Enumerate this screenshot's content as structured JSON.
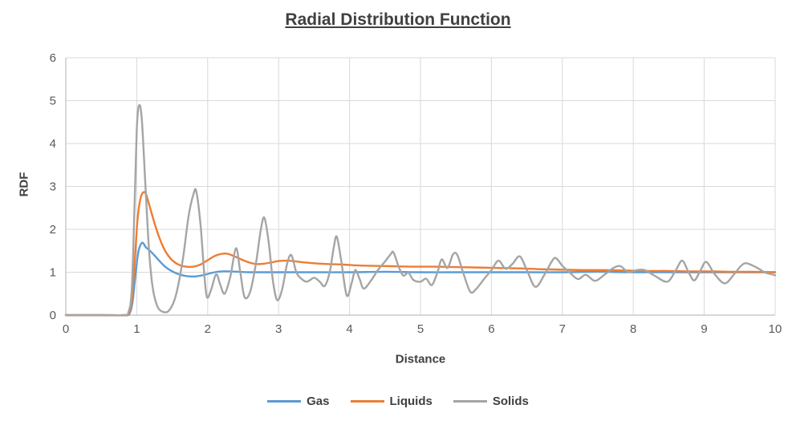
{
  "chart_data": {
    "type": "line",
    "title": "Radial Distribution Function",
    "xlabel": "Distance",
    "ylabel": "RDF",
    "xlim": [
      0,
      10
    ],
    "ylim": [
      0,
      6
    ],
    "x_ticks": [
      "0",
      "1",
      "2",
      "3",
      "4",
      "5",
      "6",
      "7",
      "8",
      "9",
      "10"
    ],
    "y_ticks": [
      "0",
      "1",
      "2",
      "3",
      "4",
      "5",
      "6"
    ],
    "grid": true,
    "legend_position": "bottom",
    "series": [
      {
        "name": "Gas",
        "color": "#5B9BD5",
        "points": [
          [
            0,
            0
          ],
          [
            0.5,
            0
          ],
          [
            0.84,
            0
          ],
          [
            0.9,
            0.04
          ],
          [
            0.94,
            0.3
          ],
          [
            0.98,
            0.9
          ],
          [
            1.02,
            1.45
          ],
          [
            1.06,
            1.66
          ],
          [
            1.09,
            1.68
          ],
          [
            1.13,
            1.58
          ],
          [
            1.2,
            1.48
          ],
          [
            1.3,
            1.3
          ],
          [
            1.4,
            1.13
          ],
          [
            1.5,
            1.02
          ],
          [
            1.6,
            0.95
          ],
          [
            1.7,
            0.91
          ],
          [
            1.8,
            0.9
          ],
          [
            1.9,
            0.92
          ],
          [
            2.0,
            0.96
          ],
          [
            2.1,
            1.0
          ],
          [
            2.2,
            1.02
          ],
          [
            2.3,
            1.02
          ],
          [
            2.45,
            1.01
          ],
          [
            2.6,
            1.0
          ],
          [
            3.0,
            1.0
          ],
          [
            3.5,
            1.0
          ],
          [
            4.0,
            1.0
          ],
          [
            4.5,
            1.01
          ],
          [
            5.0,
            1.0
          ],
          [
            5.5,
            1.0
          ],
          [
            6.0,
            1.0
          ],
          [
            6.5,
            1.0
          ],
          [
            7.0,
            1.0
          ],
          [
            7.5,
            1.01
          ],
          [
            8.0,
            1.0
          ],
          [
            8.5,
            1.0
          ],
          [
            9.0,
            1.0
          ],
          [
            9.5,
            1.0
          ],
          [
            10,
            1.0
          ]
        ]
      },
      {
        "name": "Liquids",
        "color": "#ED7D31",
        "points": [
          [
            0,
            0
          ],
          [
            0.5,
            0
          ],
          [
            0.84,
            0
          ],
          [
            0.89,
            0.05
          ],
          [
            0.93,
            0.35
          ],
          [
            0.97,
            1.2
          ],
          [
            1.01,
            2.2
          ],
          [
            1.05,
            2.7
          ],
          [
            1.09,
            2.86
          ],
          [
            1.13,
            2.82
          ],
          [
            1.18,
            2.55
          ],
          [
            1.25,
            2.15
          ],
          [
            1.32,
            1.8
          ],
          [
            1.4,
            1.5
          ],
          [
            1.5,
            1.28
          ],
          [
            1.6,
            1.17
          ],
          [
            1.7,
            1.13
          ],
          [
            1.8,
            1.13
          ],
          [
            1.9,
            1.18
          ],
          [
            2.0,
            1.28
          ],
          [
            2.1,
            1.38
          ],
          [
            2.2,
            1.43
          ],
          [
            2.28,
            1.43
          ],
          [
            2.38,
            1.37
          ],
          [
            2.5,
            1.28
          ],
          [
            2.6,
            1.22
          ],
          [
            2.7,
            1.19
          ],
          [
            2.8,
            1.2
          ],
          [
            2.9,
            1.23
          ],
          [
            3.0,
            1.26
          ],
          [
            3.1,
            1.27
          ],
          [
            3.2,
            1.26
          ],
          [
            3.35,
            1.23
          ],
          [
            3.5,
            1.21
          ],
          [
            3.7,
            1.19
          ],
          [
            3.9,
            1.18
          ],
          [
            4.1,
            1.16
          ],
          [
            4.3,
            1.15
          ],
          [
            4.6,
            1.14
          ],
          [
            4.9,
            1.13
          ],
          [
            5.2,
            1.13
          ],
          [
            5.5,
            1.12
          ],
          [
            5.8,
            1.11
          ],
          [
            6.1,
            1.1
          ],
          [
            6.4,
            1.09
          ],
          [
            6.7,
            1.07
          ],
          [
            7.0,
            1.06
          ],
          [
            7.3,
            1.05
          ],
          [
            7.6,
            1.05
          ],
          [
            7.9,
            1.04
          ],
          [
            8.2,
            1.03
          ],
          [
            8.5,
            1.03
          ],
          [
            8.8,
            1.02
          ],
          [
            9.1,
            1.02
          ],
          [
            9.4,
            1.01
          ],
          [
            9.7,
            1.01
          ],
          [
            10,
            1.0
          ]
        ]
      },
      {
        "name": "Solids",
        "color": "#A5A5A5",
        "points": [
          [
            0,
            0
          ],
          [
            0.5,
            0
          ],
          [
            0.82,
            0
          ],
          [
            0.88,
            0.05
          ],
          [
            0.93,
            0.6
          ],
          [
            0.97,
            2.6
          ],
          [
            1.0,
            4.3
          ],
          [
            1.03,
            4.88
          ],
          [
            1.07,
            4.6
          ],
          [
            1.12,
            3.1
          ],
          [
            1.17,
            1.6
          ],
          [
            1.22,
            0.7
          ],
          [
            1.28,
            0.25
          ],
          [
            1.35,
            0.09
          ],
          [
            1.45,
            0.1
          ],
          [
            1.55,
            0.45
          ],
          [
            1.65,
            1.3
          ],
          [
            1.73,
            2.3
          ],
          [
            1.8,
            2.82
          ],
          [
            1.84,
            2.88
          ],
          [
            1.9,
            2.1
          ],
          [
            1.95,
            1.0
          ],
          [
            1.99,
            0.42
          ],
          [
            2.05,
            0.6
          ],
          [
            2.12,
            0.95
          ],
          [
            2.18,
            0.7
          ],
          [
            2.24,
            0.5
          ],
          [
            2.32,
            0.9
          ],
          [
            2.4,
            1.56
          ],
          [
            2.46,
            1.0
          ],
          [
            2.52,
            0.42
          ],
          [
            2.6,
            0.55
          ],
          [
            2.68,
            1.2
          ],
          [
            2.75,
            2.0
          ],
          [
            2.8,
            2.27
          ],
          [
            2.86,
            1.7
          ],
          [
            2.92,
            0.8
          ],
          [
            2.98,
            0.35
          ],
          [
            3.05,
            0.6
          ],
          [
            3.12,
            1.2
          ],
          [
            3.18,
            1.4
          ],
          [
            3.25,
            1.0
          ],
          [
            3.32,
            0.85
          ],
          [
            3.4,
            0.78
          ],
          [
            3.5,
            0.87
          ],
          [
            3.58,
            0.78
          ],
          [
            3.65,
            0.68
          ],
          [
            3.72,
            1.0
          ],
          [
            3.78,
            1.6
          ],
          [
            3.82,
            1.83
          ],
          [
            3.88,
            1.3
          ],
          [
            3.96,
            0.46
          ],
          [
            4.03,
            0.75
          ],
          [
            4.08,
            1.05
          ],
          [
            4.14,
            0.85
          ],
          [
            4.2,
            0.62
          ],
          [
            4.3,
            0.8
          ],
          [
            4.4,
            1.05
          ],
          [
            4.5,
            1.25
          ],
          [
            4.58,
            1.42
          ],
          [
            4.62,
            1.46
          ],
          [
            4.7,
            1.1
          ],
          [
            4.76,
            0.92
          ],
          [
            4.83,
            0.99
          ],
          [
            4.9,
            0.82
          ],
          [
            5.0,
            0.78
          ],
          [
            5.08,
            0.85
          ],
          [
            5.16,
            0.7
          ],
          [
            5.24,
            1.0
          ],
          [
            5.3,
            1.3
          ],
          [
            5.38,
            1.1
          ],
          [
            5.46,
            1.42
          ],
          [
            5.52,
            1.4
          ],
          [
            5.6,
            1.0
          ],
          [
            5.7,
            0.55
          ],
          [
            5.78,
            0.6
          ],
          [
            5.9,
            0.85
          ],
          [
            6.0,
            1.05
          ],
          [
            6.1,
            1.27
          ],
          [
            6.2,
            1.08
          ],
          [
            6.3,
            1.2
          ],
          [
            6.4,
            1.37
          ],
          [
            6.5,
            1.05
          ],
          [
            6.62,
            0.66
          ],
          [
            6.75,
            0.95
          ],
          [
            6.85,
            1.25
          ],
          [
            6.91,
            1.33
          ],
          [
            7.0,
            1.15
          ],
          [
            7.1,
            1.0
          ],
          [
            7.22,
            0.84
          ],
          [
            7.33,
            0.94
          ],
          [
            7.46,
            0.8
          ],
          [
            7.6,
            0.95
          ],
          [
            7.72,
            1.1
          ],
          [
            7.82,
            1.14
          ],
          [
            7.93,
            1.0
          ],
          [
            8.05,
            1.05
          ],
          [
            8.16,
            1.05
          ],
          [
            8.3,
            0.92
          ],
          [
            8.48,
            0.78
          ],
          [
            8.6,
            1.05
          ],
          [
            8.69,
            1.27
          ],
          [
            8.78,
            1.0
          ],
          [
            8.86,
            0.81
          ],
          [
            8.95,
            1.05
          ],
          [
            9.03,
            1.24
          ],
          [
            9.15,
            0.95
          ],
          [
            9.29,
            0.74
          ],
          [
            9.42,
            0.95
          ],
          [
            9.52,
            1.15
          ],
          [
            9.6,
            1.21
          ],
          [
            9.75,
            1.1
          ],
          [
            9.85,
            1.0
          ],
          [
            9.93,
            0.96
          ],
          [
            10,
            0.93
          ]
        ]
      }
    ]
  },
  "colors": {
    "grid": "#D9D9D9",
    "axis": "#BFBFBF",
    "title_text": "#404040",
    "tick_text": "#595959",
    "background": "#FFFFFF"
  }
}
